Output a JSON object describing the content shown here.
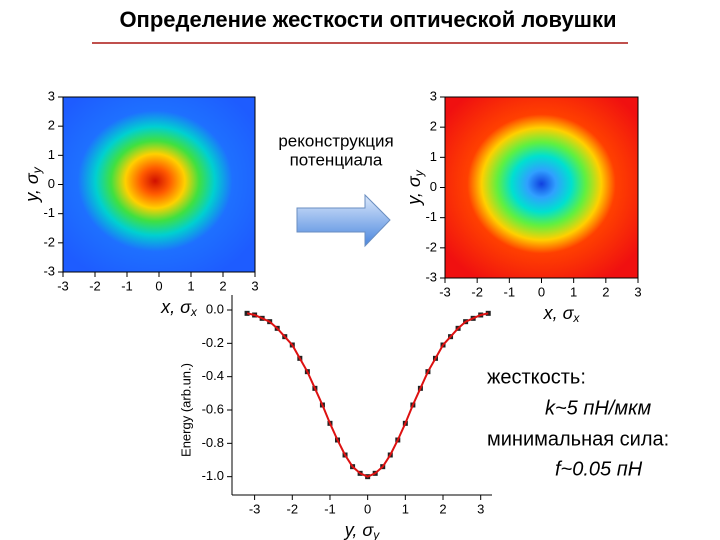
{
  "title": "Определение жесткости оптической ловушки",
  "arrow_label": [
    "реконструкция",
    "потенциала"
  ],
  "notes": [
    "жесткость:",
    "k~5 пН/мкм",
    "минимальная сила:",
    "f~0.05 пН"
  ],
  "chart_data": [
    {
      "type": "heatmap",
      "xlabel": "x, σ",
      "xlabel_sub": "x",
      "ylabel": "y, σ",
      "ylabel_sub": "y",
      "xlim": [
        -3,
        3
      ],
      "ylim": [
        -3,
        3
      ],
      "xticks": [
        -3,
        -2,
        -1,
        0,
        1,
        2,
        3
      ],
      "yticks": [
        -3,
        -2,
        -1,
        0,
        1,
        2,
        3
      ],
      "colormap": "center-high"
    },
    {
      "type": "heatmap",
      "xlabel": "x, σ",
      "xlabel_sub": "x",
      "ylabel": "y, σ",
      "ylabel_sub": "y",
      "xlim": [
        -3,
        3
      ],
      "ylim": [
        -3,
        3
      ],
      "xticks": [
        -3,
        -2,
        -1,
        0,
        1,
        2,
        3
      ],
      "yticks": [
        -3,
        -2,
        -1,
        0,
        1,
        2,
        3
      ],
      "colormap": "center-low"
    },
    {
      "type": "line",
      "xlabel": "y, σ",
      "xlabel_sub": "y",
      "ylabel": "Energy (arb.un.)",
      "x": [
        -3.2,
        -3.0,
        -2.8,
        -2.6,
        -2.4,
        -2.2,
        -2.0,
        -1.8,
        -1.6,
        -1.4,
        -1.2,
        -1.0,
        -0.8,
        -0.6,
        -0.4,
        -0.2,
        0,
        0.2,
        0.4,
        0.6,
        0.8,
        1.0,
        1.2,
        1.4,
        1.6,
        1.8,
        2.0,
        2.2,
        2.4,
        2.6,
        2.8,
        3.0,
        3.2
      ],
      "series": [
        {
          "color": "#222222",
          "marker": "square",
          "values": [
            -0.02,
            -0.03,
            -0.05,
            -0.07,
            -0.11,
            -0.16,
            -0.21,
            -0.29,
            -0.37,
            -0.47,
            -0.57,
            -0.68,
            -0.78,
            -0.87,
            -0.94,
            -0.98,
            -1.0,
            -0.98,
            -0.94,
            -0.87,
            -0.78,
            -0.68,
            -0.57,
            -0.47,
            -0.37,
            -0.29,
            -0.21,
            -0.16,
            -0.11,
            -0.07,
            -0.05,
            -0.03,
            -0.02
          ]
        },
        {
          "color": "#dd1111",
          "marker": "none",
          "values": [
            -0.02,
            -0.03,
            -0.05,
            -0.07,
            -0.11,
            -0.16,
            -0.21,
            -0.29,
            -0.37,
            -0.47,
            -0.57,
            -0.68,
            -0.78,
            -0.87,
            -0.94,
            -0.98,
            -1.0,
            -0.98,
            -0.94,
            -0.87,
            -0.78,
            -0.68,
            -0.57,
            -0.47,
            -0.37,
            -0.29,
            -0.21,
            -0.16,
            -0.11,
            -0.07,
            -0.05,
            -0.03,
            -0.02
          ]
        }
      ],
      "xlim": [
        -3.6,
        3.3
      ],
      "ylim": [
        -1.11,
        0.09
      ],
      "xticks": [
        -3,
        -2,
        -1,
        0,
        1,
        2,
        3
      ],
      "yticks": [
        {
          "value": 0,
          "label": "0.0"
        },
        -0.2,
        -0.4,
        -0.6,
        -0.8,
        {
          "value": -1,
          "label": "-1.0"
        }
      ]
    }
  ]
}
